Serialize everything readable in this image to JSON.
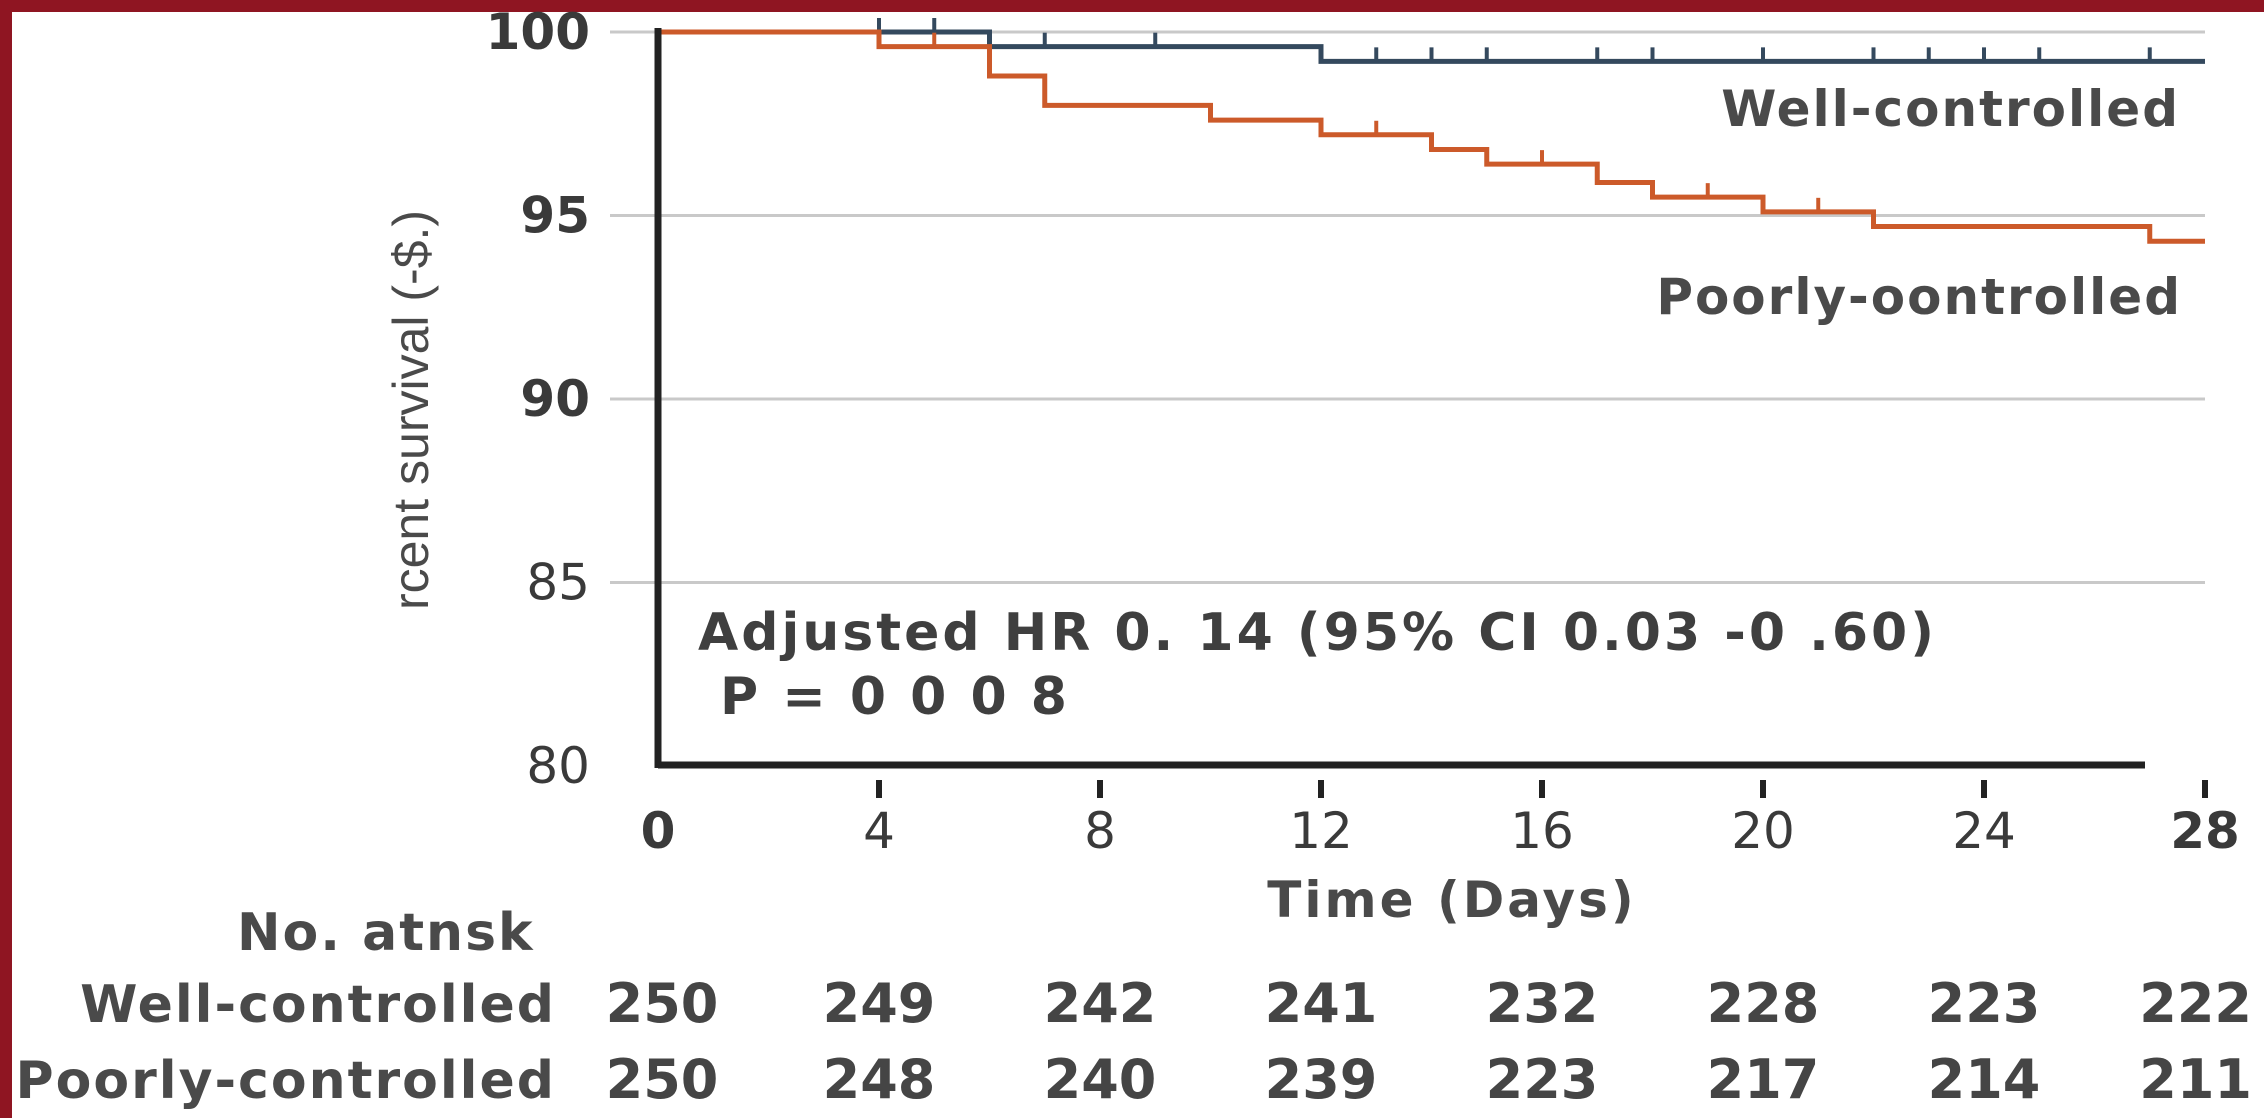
{
  "chart_data": {
    "type": "line",
    "subtype": "kaplan-meier step",
    "ylabel": "rcent survival (-$.)",
    "xlabel": "Time (Days)",
    "xlim": [
      0,
      28
    ],
    "ylim": [
      80,
      100
    ],
    "x_ticks": [
      0,
      4,
      8,
      12,
      16,
      20,
      24,
      28
    ],
    "y_ticks": [
      80,
      85,
      90,
      95,
      100
    ],
    "x_tick_labels": [
      "0",
      "4",
      "8",
      "12",
      "16",
      "20",
      "24",
      "28"
    ],
    "y_tick_labels": [
      "80",
      "85",
      "90",
      "95",
      "100"
    ],
    "grid": "horizontal",
    "series": [
      {
        "name": "Well-controlled",
        "color": "#34495e",
        "steps": [
          [
            0,
            100
          ],
          [
            6,
            99.6
          ],
          [
            12,
            99.2
          ],
          [
            28,
            99.2
          ]
        ],
        "censor_x": [
          4,
          5,
          7,
          9,
          13,
          14,
          15,
          17,
          18,
          20,
          22,
          23,
          24,
          25,
          27
        ]
      },
      {
        "name": "Poorly-oontrolled",
        "color": "#cc5a2a",
        "steps": [
          [
            0,
            100
          ],
          [
            4,
            99.6
          ],
          [
            6,
            98.8
          ],
          [
            7,
            98.0
          ],
          [
            10,
            97.6
          ],
          [
            12,
            97.2
          ],
          [
            14,
            96.8
          ],
          [
            15,
            96.4
          ],
          [
            17,
            95.9
          ],
          [
            18,
            95.5
          ],
          [
            20,
            95.1
          ],
          [
            22,
            94.7
          ],
          [
            27,
            94.3
          ],
          [
            28,
            94.3
          ]
        ],
        "censor_x": [
          5,
          13,
          16,
          19,
          21
        ]
      }
    ],
    "annotation": {
      "line1": "Adjusted HR 0. 14 (95% CI 0.03 -0 .60)",
      "line2": "P = 0 0 0 8"
    },
    "risk_table": {
      "title": "No. atnsk",
      "rows": [
        {
          "label": "Well-controlled",
          "values": [
            "250",
            "249",
            "242",
            "241",
            "232",
            "228",
            "223",
            "222"
          ]
        },
        {
          "label": "Poorly-controlled",
          "values": [
            "250",
            "248",
            "240",
            "239",
            "223",
            "217",
            "214",
            "211"
          ]
        }
      ]
    }
  }
}
